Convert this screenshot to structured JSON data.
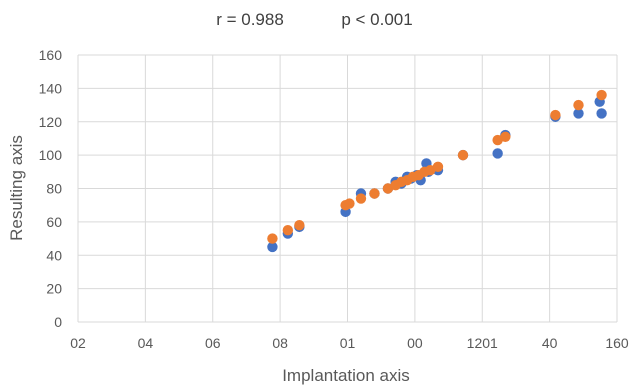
{
  "chart_data": {
    "type": "scatter",
    "annotations": [
      "r = 0.988",
      "p < 0.001"
    ],
    "xlabel": "Implantation axis",
    "ylabel": "Resulting axis",
    "x_tick_labels": [
      "02",
      "04",
      "06",
      "08",
      "01",
      "00",
      "1201",
      "40",
      "160"
    ],
    "y_tick_labels": [
      "0",
      "20",
      "40",
      "60",
      "80",
      "100",
      "120",
      "140",
      "160"
    ],
    "xlim": [
      20,
      160
    ],
    "ylim": [
      0,
      160
    ],
    "grid": true,
    "legend": "none",
    "series": [
      {
        "color": "#4472C4",
        "points": [
          [
            70.5,
            45
          ],
          [
            74.5,
            53
          ],
          [
            77.5,
            57
          ],
          [
            89.5,
            66
          ],
          [
            93.5,
            77
          ],
          [
            97,
            77
          ],
          [
            100.5,
            80
          ],
          [
            102.5,
            84
          ],
          [
            104,
            83
          ],
          [
            105.5,
            87
          ],
          [
            106.5,
            86
          ],
          [
            108,
            88
          ],
          [
            109,
            85
          ],
          [
            110.5,
            95
          ],
          [
            111,
            90
          ],
          [
            113.5,
            91
          ],
          [
            120,
            100
          ],
          [
            129,
            101
          ],
          [
            131,
            112
          ],
          [
            144,
            123
          ],
          [
            150,
            125
          ],
          [
            156,
            125
          ],
          [
            155.5,
            132
          ]
        ]
      },
      {
        "color": "#ED7D31",
        "points": [
          [
            70.5,
            50
          ],
          [
            74.5,
            55
          ],
          [
            77.5,
            58
          ],
          [
            89.5,
            70
          ],
          [
            90.5,
            71
          ],
          [
            93.5,
            74
          ],
          [
            97,
            77
          ],
          [
            100.5,
            80
          ],
          [
            102.5,
            82
          ],
          [
            104,
            84
          ],
          [
            105.5,
            85
          ],
          [
            107,
            87
          ],
          [
            108.5,
            88
          ],
          [
            110,
            90
          ],
          [
            111.5,
            91
          ],
          [
            113.5,
            93
          ],
          [
            120,
            100
          ],
          [
            129,
            109
          ],
          [
            131,
            111
          ],
          [
            144,
            124
          ],
          [
            150,
            130
          ],
          [
            156,
            136
          ]
        ]
      }
    ]
  }
}
